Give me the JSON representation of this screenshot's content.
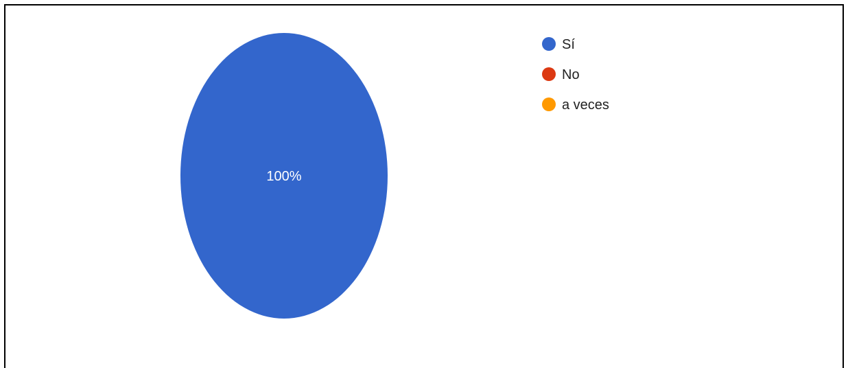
{
  "chart_data": {
    "type": "pie",
    "title": "",
    "slices": [
      {
        "label": "Sí",
        "value": 100,
        "display": "100%",
        "color": "#3366cc"
      },
      {
        "label": "No",
        "value": 0,
        "display": "0%",
        "color": "#dc3912"
      },
      {
        "label": "a veces",
        "value": 0,
        "display": "0%",
        "color": "#ff9900"
      }
    ],
    "legend_position": "top-right"
  }
}
